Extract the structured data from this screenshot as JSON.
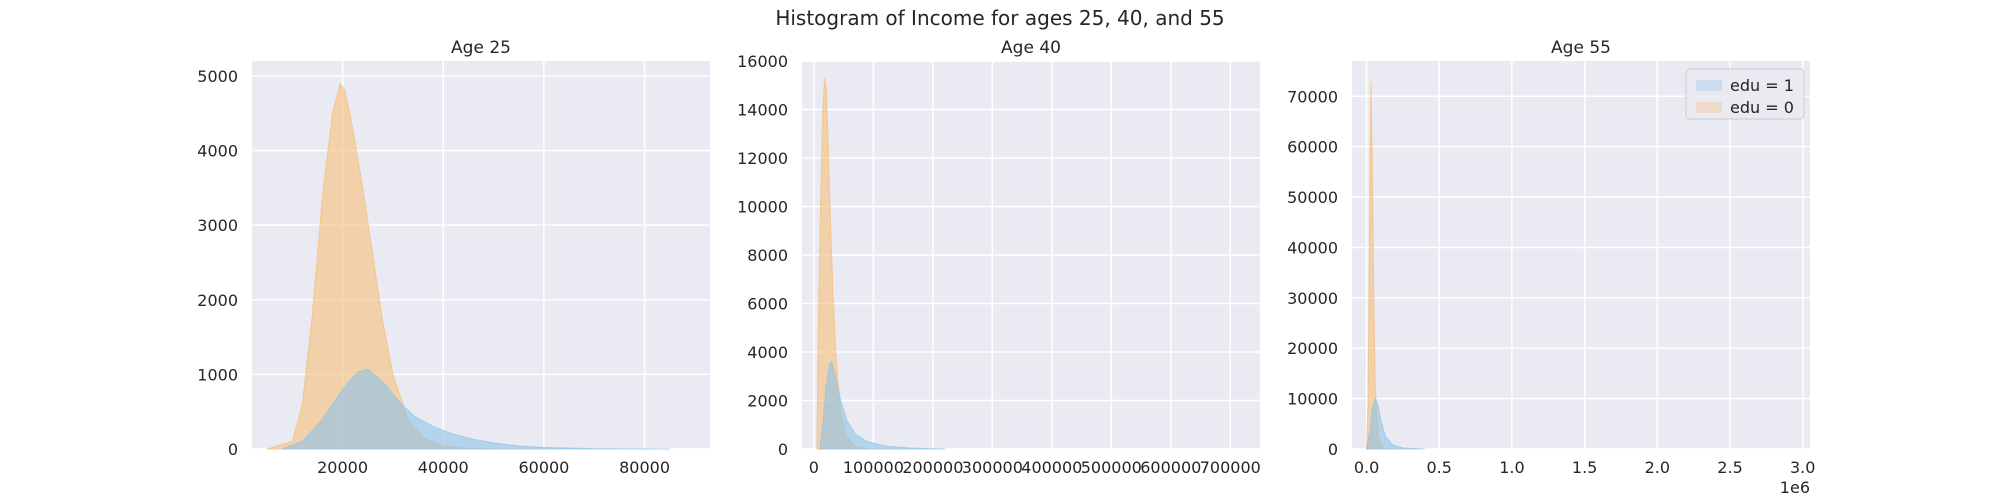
{
  "figure": {
    "title": "Histogram of Income for ages 25, 40, and 55"
  },
  "colors": {
    "background": "#EAEAF2",
    "grid": "#FFFFFF",
    "edu1": "#8FC3E8",
    "edu0": "#F5BE7A",
    "overlap": "#BDB98E"
  },
  "chart_data": [
    {
      "type": "area",
      "title": "Age 25",
      "xlim": [
        2000,
        93000
      ],
      "ylim": [
        0,
        5200
      ],
      "xticks": [
        20000,
        40000,
        60000,
        80000
      ],
      "yticks": [
        0,
        1000,
        2000,
        3000,
        4000,
        5000
      ],
      "xtick_labels": [
        "20000",
        "40000",
        "60000",
        "80000"
      ],
      "ytick_labels": [
        "0",
        "1000",
        "2000",
        "3000",
        "4000",
        "5000"
      ],
      "series": [
        {
          "name": "edu = 0",
          "x": [
            5000,
            10000,
            12000,
            14000,
            16000,
            18000,
            19500,
            20500,
            22000,
            24000,
            26000,
            28000,
            30000,
            33000,
            36000,
            40000,
            45000,
            50000
          ],
          "y": [
            0,
            100,
            600,
            1800,
            3400,
            4500,
            4900,
            4800,
            4300,
            3500,
            2600,
            1700,
            1000,
            400,
            150,
            40,
            10,
            0
          ]
        },
        {
          "name": "edu = 1",
          "x": [
            8000,
            12000,
            16000,
            20000,
            23000,
            25000,
            28000,
            31000,
            34000,
            38000,
            42000,
            46000,
            50000,
            55000,
            60000,
            70000,
            85000
          ],
          "y": [
            0,
            100,
            400,
            800,
            1030,
            1070,
            900,
            650,
            450,
            300,
            200,
            130,
            80,
            40,
            20,
            5,
            0
          ]
        }
      ]
    },
    {
      "type": "area",
      "title": "Age 40",
      "xlim": [
        -20000,
        750000
      ],
      "ylim": [
        0,
        16000
      ],
      "xticks": [
        0,
        100000,
        200000,
        300000,
        400000,
        500000,
        600000,
        700000
      ],
      "yticks": [
        0,
        2000,
        4000,
        6000,
        8000,
        10000,
        12000,
        14000,
        16000
      ],
      "xtick_labels": [
        "0",
        "100000",
        "200000",
        "300000",
        "400000",
        "500000",
        "600000",
        "700000"
      ],
      "ytick_labels": [
        "0",
        "2000",
        "4000",
        "6000",
        "8000",
        "10000",
        "12000",
        "14000",
        "16000"
      ],
      "series": [
        {
          "name": "edu = 0",
          "x": [
            5000,
            8000,
            12000,
            15000,
            18000,
            21000,
            24000,
            27000,
            32000,
            38000,
            45000,
            55000,
            70000,
            90000
          ],
          "y": [
            0,
            6000,
            11000,
            14000,
            15300,
            14800,
            12500,
            10000,
            6500,
            3500,
            1500,
            500,
            100,
            0
          ]
        },
        {
          "name": "edu = 1",
          "x": [
            10000,
            15000,
            20000,
            26000,
            30000,
            36000,
            45000,
            55000,
            70000,
            90000,
            120000,
            160000,
            220000
          ],
          "y": [
            0,
            1000,
            2500,
            3500,
            3600,
            3000,
            2000,
            1200,
            600,
            300,
            120,
            40,
            0
          ]
        }
      ]
    },
    {
      "type": "area",
      "title": "Age 55",
      "xlim": [
        -100000,
        3050000
      ],
      "ylim": [
        0,
        77000
      ],
      "xticks": [
        0,
        500000,
        1000000,
        1500000,
        2000000,
        2500000,
        3000000
      ],
      "yticks": [
        0,
        10000,
        20000,
        30000,
        40000,
        50000,
        60000,
        70000
      ],
      "xtick_labels": [
        "0.0",
        "0.5",
        "1.0",
        "1.5",
        "2.0",
        "2.5",
        "3.0"
      ],
      "ytick_labels": [
        "0",
        "10000",
        "20000",
        "30000",
        "40000",
        "50000",
        "60000",
        "70000"
      ],
      "x_offset_label": "1e6",
      "legend": {
        "position": "top-right",
        "entries": [
          "edu = 1",
          "edu = 0"
        ]
      },
      "series": [
        {
          "name": "edu = 0",
          "x": [
            0,
            10000,
            20000,
            30000,
            40000,
            50000,
            60000,
            80000,
            100000,
            130000
          ],
          "y": [
            0,
            9000,
            40000,
            73000,
            55000,
            30000,
            12000,
            3000,
            800,
            0
          ]
        },
        {
          "name": "edu = 1",
          "x": [
            0,
            20000,
            40000,
            60000,
            80000,
            100000,
            130000,
            180000,
            250000,
            400000
          ],
          "y": [
            0,
            3000,
            8000,
            10000,
            8500,
            5500,
            2500,
            800,
            200,
            0
          ]
        }
      ]
    }
  ]
}
